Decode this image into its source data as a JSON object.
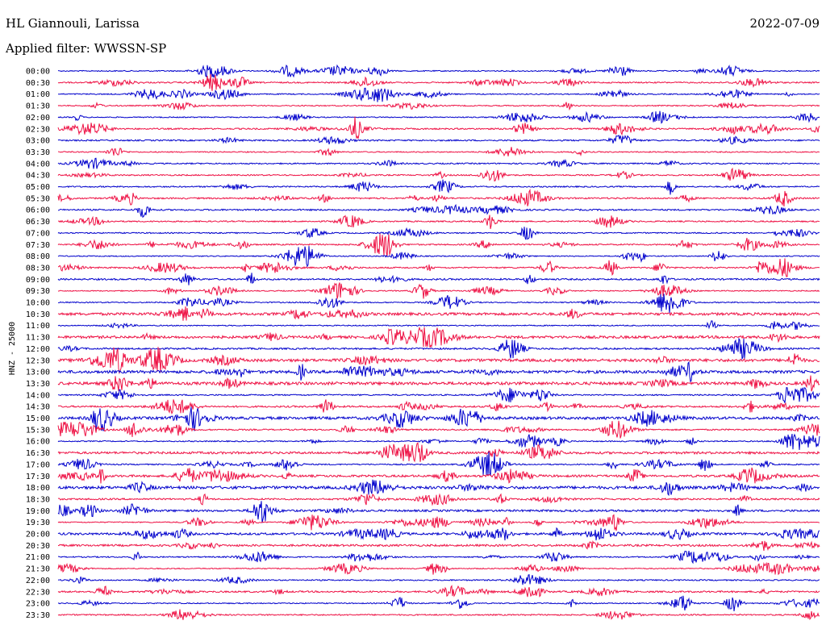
{
  "header": {
    "station": "HL Giannouli, Larissa",
    "date": "2022-07-09",
    "filter": "Applied filter: WWSSN-SP"
  },
  "colors": {
    "odd": "#0000cc",
    "even": "#ee1144"
  },
  "chart_data": {
    "type": "line",
    "title": "HL Giannouli, Larissa",
    "ylabel": "HNZ - 25000",
    "rows": [
      "00:00",
      "00:30",
      "01:00",
      "01:30",
      "02:00",
      "02:30",
      "03:00",
      "03:30",
      "04:00",
      "04:30",
      "05:00",
      "05:30",
      "06:00",
      "06:30",
      "07:00",
      "07:30",
      "08:00",
      "08:30",
      "09:00",
      "09:30",
      "10:00",
      "10:30",
      "11:00",
      "11:30",
      "12:00",
      "12:30",
      "13:00",
      "13:30",
      "14:00",
      "14:30",
      "15:00",
      "15:30",
      "16:00",
      "16:30",
      "17:00",
      "17:30",
      "18:00",
      "18:30",
      "19:00",
      "19:30",
      "20:00",
      "20:30",
      "21:00",
      "21:30",
      "22:00",
      "22:30",
      "23:00",
      "23:30"
    ],
    "series": [
      {
        "values": []
      }
    ]
  }
}
